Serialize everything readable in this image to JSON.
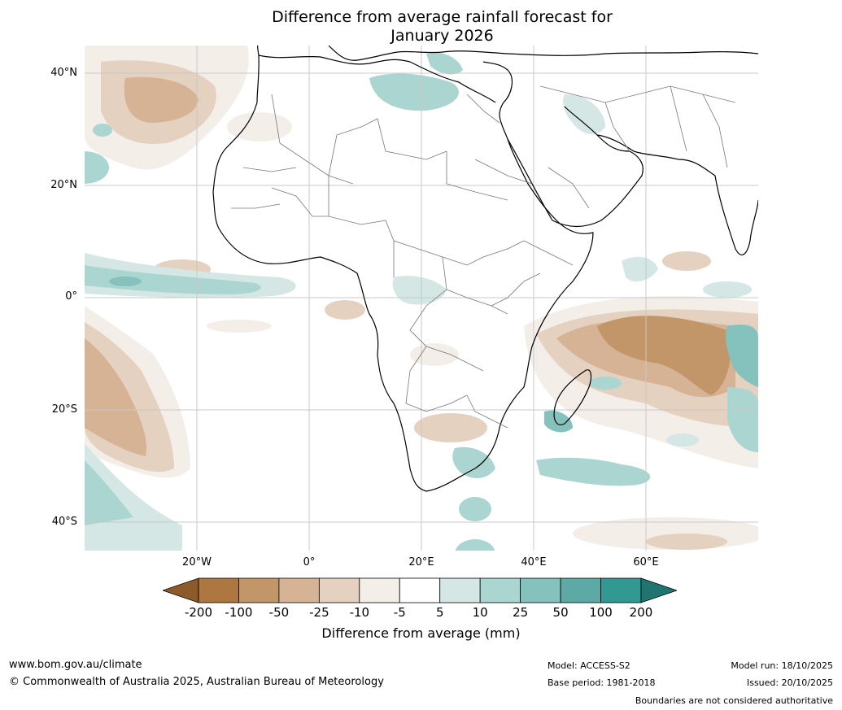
{
  "title": {
    "line1": "Difference from average rainfall forecast for",
    "line2": "January 2026"
  },
  "map": {
    "lat_labels": [
      "40°N",
      "20°N",
      "0°",
      "20°S",
      "40°S"
    ],
    "lon_labels": [
      "20°W",
      "0°",
      "20°E",
      "40°E",
      "60°E"
    ],
    "extent": {
      "lon_min": -40,
      "lon_max": 80,
      "lat_min": -45,
      "lat_max": 45
    }
  },
  "colorbar": {
    "label": "Difference from average (mm)",
    "ticks": [
      "-200",
      "-100",
      "-50",
      "-25",
      "-10",
      "-5",
      "5",
      "10",
      "25",
      "50",
      "100",
      "200"
    ],
    "colors": [
      "#8f5a2a",
      "#ae7640",
      "#c29669",
      "#d5b394",
      "#e5d1bf",
      "#f3eee7",
      "#ffffff",
      "#d4e7e4",
      "#abd5d1",
      "#85c1bd",
      "#5da9a5",
      "#329892",
      "#1f7671"
    ]
  },
  "footer": {
    "website": "www.bom.gov.au/climate",
    "copyright": "© Commonwealth of Australia 2025, Australian Bureau of Meteorology",
    "model": "Model: ACCESS-S2",
    "base_period": "Base period: 1981-2018",
    "model_run": "Model run: 18/10/2025",
    "issued": "Issued: 20/10/2025",
    "disclaimer": "Boundaries are not considered authoritative"
  }
}
